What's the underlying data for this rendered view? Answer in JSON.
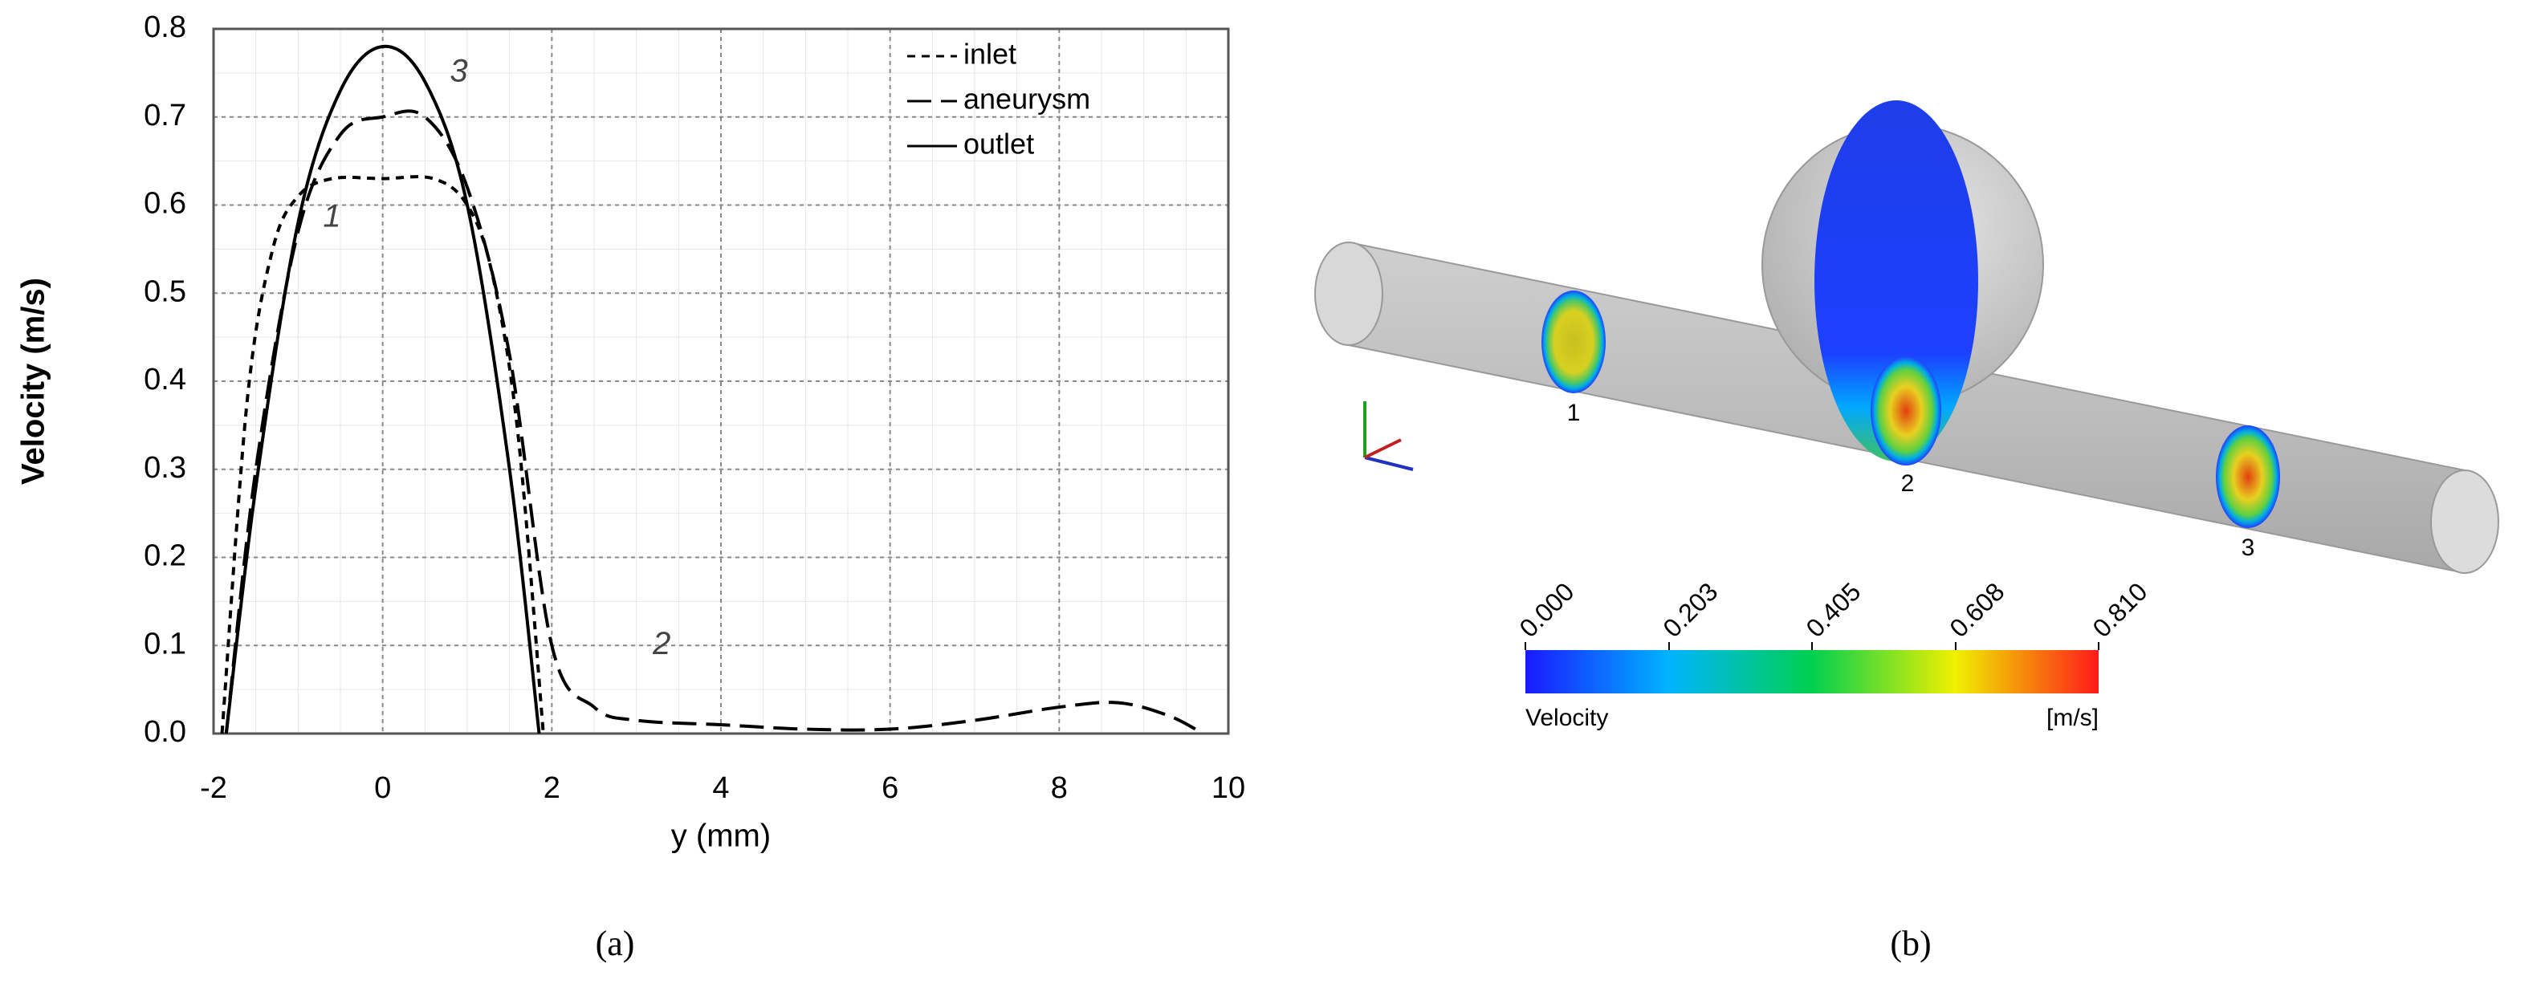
{
  "chart_data": {
    "type": "line",
    "ylabel": "Velocity (m/s)",
    "xlabel": "y (mm)",
    "xlim": [
      -2,
      10
    ],
    "ylim": [
      0,
      0.8
    ],
    "xticks": [
      -2,
      0,
      2,
      4,
      6,
      8,
      10
    ],
    "yticks": [
      {
        "value": 0,
        "label": "0.0"
      },
      0.1,
      0.2,
      0.3,
      0.4,
      0.5,
      0.6,
      0.7,
      0.8
    ],
    "grid": true,
    "legend": "upper right",
    "series": [
      {
        "name": "inlet",
        "color": "#000000",
        "style": "short-dash",
        "x": [
          -1.9,
          -1.6,
          -1.3,
          -1,
          -0.6,
          0,
          0.6,
          1,
          1.3,
          1.6,
          1.9
        ],
        "values": [
          0,
          0.38,
          0.55,
          0.61,
          0.63,
          0.63,
          0.63,
          0.6,
          0.52,
          0.34,
          0
        ]
      },
      {
        "name": "aneurysm",
        "color": "#000000",
        "style": "long-dash",
        "x": [
          -1.85,
          -1.5,
          -1,
          -0.5,
          0,
          0.5,
          1,
          1.5,
          2,
          2.5,
          3,
          4,
          5,
          6,
          7,
          8,
          8.7,
          9.3,
          9.7
        ],
        "values": [
          0,
          0.3,
          0.57,
          0.68,
          0.7,
          0.7,
          0.62,
          0.43,
          0.1,
          0.03,
          0.015,
          0.01,
          0.005,
          0.005,
          0.015,
          0.03,
          0.035,
          0.02,
          0
        ]
      },
      {
        "name": "outlet",
        "color": "#000000",
        "style": "solid",
        "x": [
          -1.85,
          -1.5,
          -1,
          -0.5,
          0,
          0.5,
          1,
          1.5,
          1.85
        ],
        "values": [
          0,
          0.28,
          0.58,
          0.73,
          0.78,
          0.74,
          0.6,
          0.3,
          0
        ]
      }
    ],
    "annotations": [
      {
        "text": "1",
        "x": -0.6,
        "y": 0.585
      },
      {
        "text": "2",
        "x": 3.3,
        "y": 0.1
      },
      {
        "text": "3",
        "x": 0.9,
        "y": 0.75
      }
    ]
  },
  "figure_b": {
    "section_labels": [
      "1",
      "2",
      "3"
    ],
    "colorbar": {
      "title": "Velocity",
      "unit": "[m/s]",
      "ticks": [
        {
          "value": 0,
          "label": "0.000"
        },
        {
          "value": 0.203,
          "label": "0.203"
        },
        {
          "value": 0.405,
          "label": "0.405"
        },
        {
          "value": 0.608,
          "label": "0.608"
        },
        {
          "value": 0.81,
          "label": "0.810"
        }
      ]
    }
  },
  "captions": [
    "(a)",
    "(b)"
  ]
}
